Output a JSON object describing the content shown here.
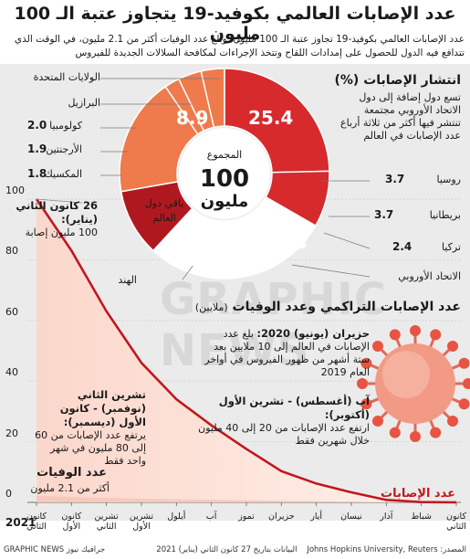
{
  "title": "عدد الإصابات العالمي بكوفيد-19 يتجاوز عتبة الـ 100 مليون",
  "subtitle": "عدد الإصابات العالمي بكوفيد-19 تجاوز عتبة الـ 100 مليون، وبلغ عدد الوفيات أكثر من 2.1 مليون، في الوقت الذي تتدافع فيه الدول للحصول على إمدادات اللقاح وتتخذ الإجراءات لمكافحة السلالات الجديدة للفيروس",
  "pie": {
    "heading": "انتشار الإصابات (%)",
    "note": "تسع دول إضافة إلى دول الاتحاد الأوروبي مجتمعة تنتشر فيها أكثر من ثلاثة أرباع عدد الإصابات في العالم",
    "center_title": "المجموع",
    "center_value": "100",
    "center_unit": "مليون",
    "rest_label": "باقي دول العالم",
    "colors": {
      "usa": "#d62a2d",
      "eu": "#ef7a4b",
      "india": "#b0181f",
      "rest": "#ffffff",
      "slice_divider": "#ffffff"
    }
  },
  "chart_data": [
    {
      "type": "pie",
      "title": "انتشار الإصابات (%)",
      "slices": [
        {
          "label": "الولايات المتحدة",
          "value": 25.4,
          "shown": "25.4"
        },
        {
          "label": "البرازيل",
          "value": 8.9,
          "shown": "8.9"
        },
        {
          "label": "كولومبيا",
          "value": 2.0,
          "shown": "2.0"
        },
        {
          "label": "الأرجنتين",
          "value": 1.9,
          "shown": "1.9"
        },
        {
          "label": "المكسيك",
          "value": 1.8,
          "shown": "1.8"
        },
        {
          "label": "باقي دول العالم",
          "value": 23.8,
          "shown": ""
        },
        {
          "label": "الهند",
          "value": 10.7,
          "shown": "10.7"
        },
        {
          "label": "الاتحاد الأوروبي",
          "value": 18.8,
          "shown": "18.8"
        },
        {
          "label": "تركيا",
          "value": 2.4,
          "shown": "2.4"
        },
        {
          "label": "بريطانيا",
          "value": 3.7,
          "shown": "3.7"
        },
        {
          "label": "روسيا",
          "value": 3.7,
          "shown": "3.7"
        }
      ]
    },
    {
      "type": "area",
      "title": "عدد الإصابات التراكمي وعدد الوفيات",
      "unit": "(ملايين)",
      "x_order": "right-to-left",
      "categories": [
        "كانون الثاني",
        "شباط",
        "آذار",
        "نيسان",
        "أيار",
        "حزيران",
        "تموز",
        "آب",
        "أيلول",
        "تشرين الأول",
        "تشرين الثاني",
        "كانون الأول",
        "كانون الثاني"
      ],
      "year_label": "2021",
      "ylim": [
        0,
        100
      ],
      "yticks": [
        0,
        20,
        40,
        60,
        80,
        100
      ],
      "series": [
        {
          "name": "عدد الإصابات",
          "color": "#c0181e",
          "values": [
            0,
            0.08,
            0.8,
            3.3,
            6.2,
            10.3,
            17.6,
            25.4,
            34,
            46,
            63,
            83,
            100
          ]
        },
        {
          "name": "عدد الوفيات",
          "color": "#f7c9bd",
          "values": [
            0,
            0.003,
            0.04,
            0.23,
            0.37,
            0.51,
            0.68,
            0.85,
            1.0,
            1.2,
            1.45,
            1.8,
            2.15
          ]
        }
      ]
    }
  ],
  "pie_labels": {
    "usa": "الولايات المتحدة",
    "brazil": "البرازيل",
    "colombia": "كولومبيا",
    "colombia_value": "2.0",
    "argentina": "الأرجنتين",
    "argentina_value": "1.9",
    "mexico": "المكسيك",
    "mexico_value": "1.8",
    "russia": "روسيا",
    "russia_value": "3.7",
    "uk": "بريطانيا",
    "uk_value": "3.7",
    "turkey": "تركيا",
    "turkey_value": "2.4",
    "eu": "الاتحاد الأوروبي",
    "india": "الهند",
    "usa_value": "25.4",
    "brazil_value": "8.9",
    "eu_value": "18.8",
    "india_value": "10.7"
  },
  "line_chart": {
    "heading": "عدد الإصابات التراكمي وعدد الوفيات",
    "unit": "(ملايين)",
    "cases_label": "عدد الإصابات",
    "deaths_heading": "عدد الوفيات",
    "deaths_text": "أكثر من 2.1 مليون",
    "month_labels": [
      "كانون الثاني",
      "شباط",
      "آذار",
      "نيسان",
      "أيار",
      "حزيران",
      "تموز",
      "آب",
      "أيلول",
      "تشرين الأول",
      "تشرين الثاني",
      "كانون الأول",
      "كانون الثاني"
    ],
    "year_label": "2021",
    "yticks": [
      "0",
      "20",
      "40",
      "60",
      "80",
      "100"
    ]
  },
  "annotations": {
    "jan26_heading": "26 كانون الثاني (يناير):",
    "jan26_text": "100 مليون إصابة",
    "june_heading": "حزيران (يونيو) 2020:",
    "june_text": "بلغ عدد الإصابات في العالم إلى 10 ملايين بعد ستة أشهر من ظهور الفيروس في أواخر العام 2019",
    "aug_heading": "آب (أغسطس) - تشرين الأول (أكتوبر):",
    "aug_text": "ارتفع عدد الإصابات من 20 إلى 40 مليون خلال شهرين فقط",
    "nov_heading": "تشرين الثاني (نوفمبر) - كانون الأول (ديسمبر):",
    "nov_text": "يرتفع عدد الإصابات من 60 إلى 80 مليون في شهر واحد فقط"
  },
  "watermark": "GRAPHIC NEWS",
  "footer": {
    "source": "المصدر: Johns Hopkins University, Reuters",
    "date": "البيانات بتاريخ 27 كانون الثاني (يناير) 2021",
    "credit": "GRAPHIC NEWS جرافيك نيوز"
  }
}
